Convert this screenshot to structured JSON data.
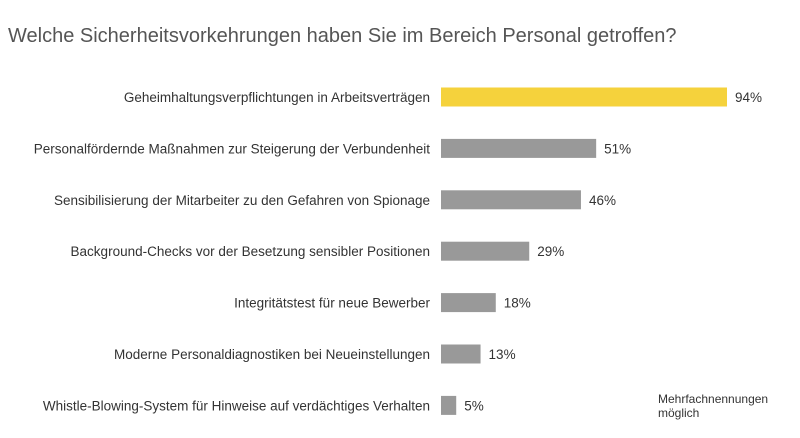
{
  "chart_data": {
    "type": "bar",
    "orientation": "horizontal",
    "title": "Welche Sicherheitsvorkehrungen haben Sie im Bereich Personal getroffen?",
    "categories": [
      "Geheimhaltungsverpflichtungen in Arbeitsverträgen",
      "Personalfördernde Maßnahmen zur Steigerung der Verbundenheit",
      "Sensibilisierung der Mitarbeiter zu den Gefahren von Spionage",
      "Background-Checks vor der Besetzung sensibler Positionen",
      "Integritätstest für neue Bewerber",
      "Moderne Personaldiagnostiken bei Neueinstellungen",
      "Whistle-Blowing-System für Hinweise auf verdächtiges Verhalten"
    ],
    "values": [
      94,
      51,
      46,
      29,
      18,
      13,
      5
    ],
    "value_labels": [
      "94%",
      "51%",
      "46%",
      "29%",
      "18%",
      "13%",
      "5%"
    ],
    "xlim": [
      0,
      100
    ],
    "highlight_index": 0,
    "colors": {
      "highlight": "#F5D23C",
      "bar": "#999999"
    },
    "note": [
      "Mehrfachnennungen",
      "möglich"
    ],
    "xlabel": "",
    "ylabel": "",
    "grid": false
  }
}
